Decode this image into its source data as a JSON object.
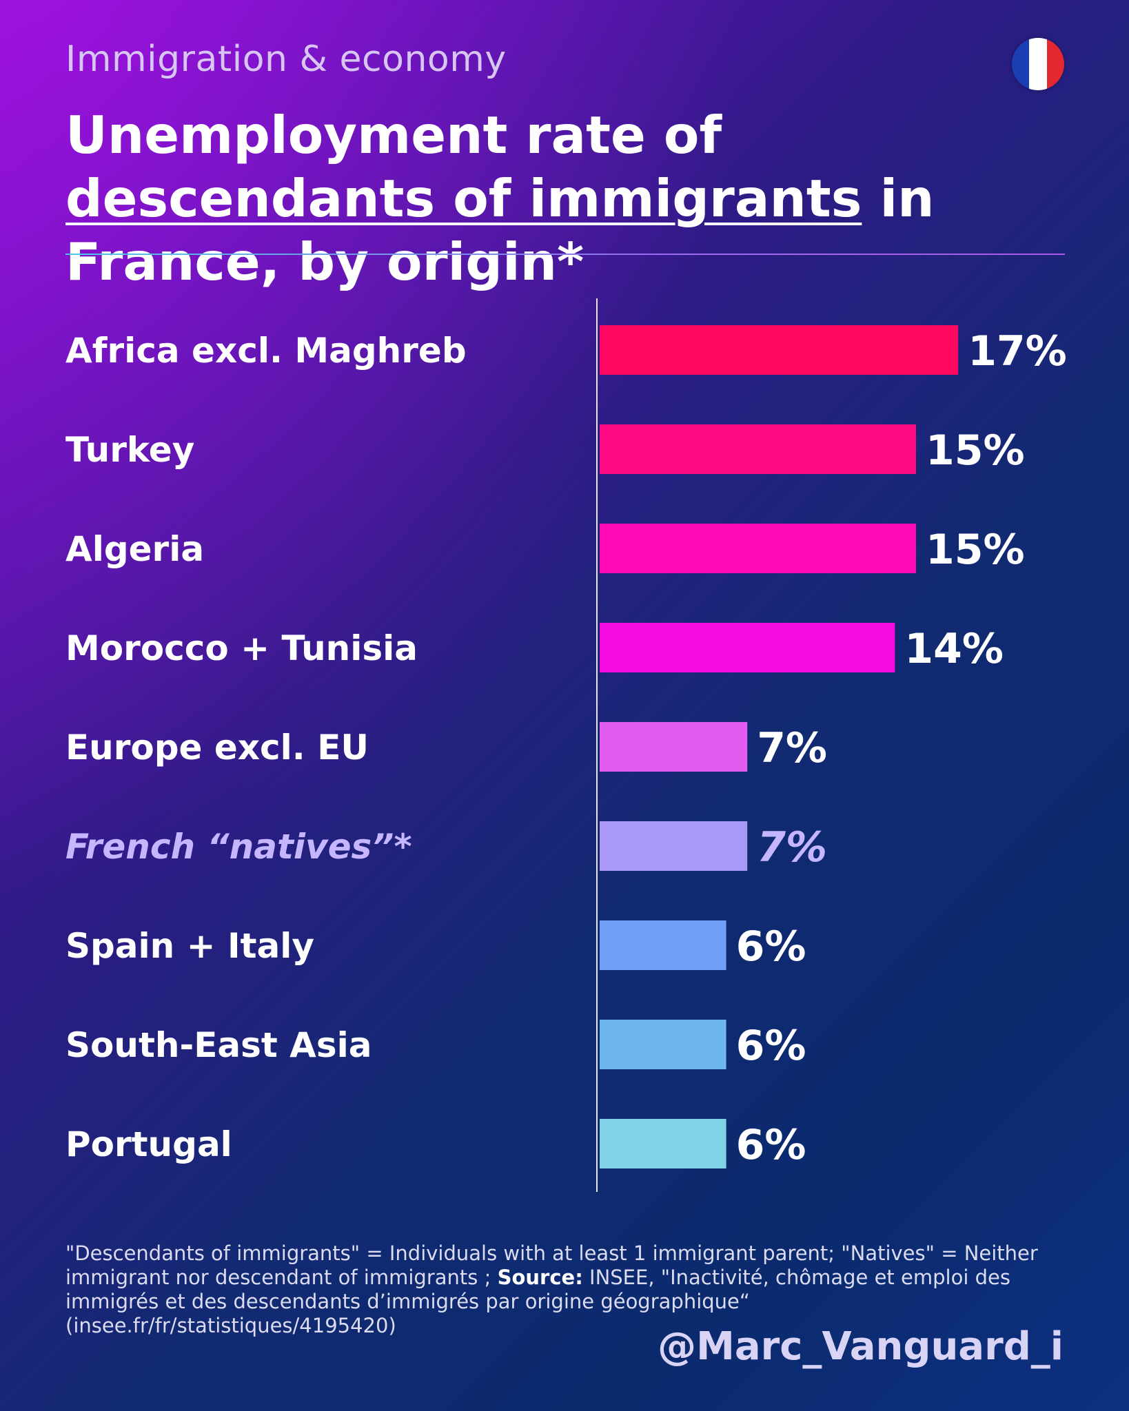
{
  "header": {
    "topic": "Immigration & economy",
    "title_part1": "Unemployment rate of ",
    "title_underlined1": "descendants of immigrants",
    "title_part2": " in France, by origin*"
  },
  "flag": {
    "colors": [
      "#1a3fb5",
      "#ffffff",
      "#e3282f"
    ],
    "icon": "france-flag-icon"
  },
  "chart_data": {
    "type": "bar",
    "orientation": "horizontal",
    "categories": [
      "Africa excl. Maghreb",
      "Turkey",
      "Algeria",
      "Morocco + Tunisia",
      "Europe excl. EU",
      "French “natives”*",
      "Spain + Italy",
      "South-East Asia",
      "Portugal"
    ],
    "values": [
      17,
      15,
      15,
      14,
      7,
      7,
      6,
      6,
      6
    ],
    "value_labels": [
      "17%",
      "15%",
      "15%",
      "14%",
      "7%",
      "7%",
      "6%",
      "6%",
      "6%"
    ],
    "bar_colors": [
      "#ff0a63",
      "#ff0a85",
      "#ff0ab4",
      "#f50ae0",
      "#e25cf0",
      "#a998f5",
      "#6e9ef5",
      "#70b6ee",
      "#80d2e6"
    ],
    "highlight_category": "French “natives”*",
    "highlight_color": "#c6b6ff",
    "unit": "%",
    "grid": false
  },
  "footnote": {
    "definition": "\"Descendants of immigrants\" = Individuals with at least 1 immigrant parent; \"Natives\" = Neither immigrant nor descendant of immigrants ; ",
    "source_label": "Source:",
    "source_text": " INSEE, \"Inactivité, chômage et emploi des immigrés et des descendants d’immigrés par origine géographique“ (insee.fr/fr/statistiques/4195420)"
  },
  "handle": "@Marc_Vanguard_i"
}
